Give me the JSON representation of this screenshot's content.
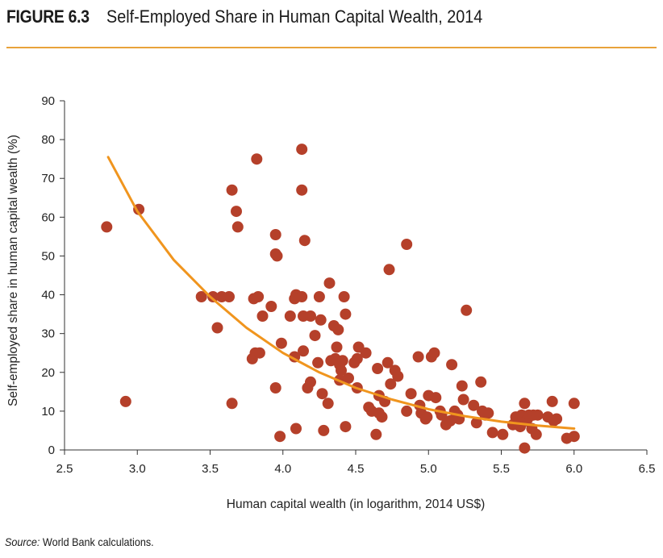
{
  "figure": {
    "label": "FIGURE 6.3",
    "title": "Self-Employed Share in Human Capital Wealth, 2014"
  },
  "source": {
    "label": "Source:",
    "text": " World Bank calculations."
  },
  "colors": {
    "points": "#b5402a",
    "trend": "#f0951e",
    "rule": "#e8a23b",
    "axis": "#333333"
  },
  "chart_data": {
    "type": "scatter",
    "title": "Self-Employed Share in Human Capital Wealth, 2014",
    "xlabel": "Human capital wealth (in logarithm, 2014 US$)",
    "ylabel": "Self-employed share in human capital wealth (%)",
    "xlim": [
      2.5,
      6.5
    ],
    "ylim": [
      0,
      90
    ],
    "xticks": [
      2.5,
      3.0,
      3.5,
      4.0,
      4.5,
      5.0,
      5.5,
      6.0,
      6.5
    ],
    "xtick_labels": [
      "2.5",
      "3.0",
      "3.5",
      "4.0",
      "4.5",
      "5.0",
      "5.5",
      "6.0",
      "6.5"
    ],
    "yticks": [
      0,
      10,
      20,
      30,
      40,
      50,
      60,
      70,
      80,
      90
    ],
    "ytick_labels": [
      "0",
      "10",
      "20",
      "30",
      "40",
      "50",
      "60",
      "70",
      "80",
      "90"
    ],
    "grid": false,
    "points": [
      [
        2.79,
        57.5
      ],
      [
        2.92,
        12.5
      ],
      [
        3.01,
        62
      ],
      [
        3.44,
        39.5
      ],
      [
        3.52,
        39.5
      ],
      [
        3.55,
        31.5
      ],
      [
        3.58,
        39.5
      ],
      [
        3.63,
        39.5
      ],
      [
        3.65,
        12
      ],
      [
        3.65,
        67
      ],
      [
        3.68,
        61.5
      ],
      [
        3.69,
        57.5
      ],
      [
        3.79,
        23.5
      ],
      [
        3.8,
        39
      ],
      [
        3.81,
        25
      ],
      [
        3.82,
        75
      ],
      [
        3.83,
        39.5
      ],
      [
        3.84,
        25
      ],
      [
        3.86,
        34.5
      ],
      [
        3.92,
        37
      ],
      [
        3.95,
        16
      ],
      [
        3.95,
        55.5
      ],
      [
        3.95,
        50.5
      ],
      [
        3.96,
        50
      ],
      [
        3.98,
        3.5
      ],
      [
        3.99,
        27.5
      ],
      [
        4.05,
        34.5
      ],
      [
        4.08,
        39
      ],
      [
        4.09,
        40
      ],
      [
        4.08,
        24
      ],
      [
        4.09,
        5.5
      ],
      [
        4.13,
        77.5
      ],
      [
        4.13,
        67
      ],
      [
        4.13,
        39.5
      ],
      [
        4.14,
        34.5
      ],
      [
        4.14,
        25.5
      ],
      [
        4.15,
        54
      ],
      [
        4.17,
        16
      ],
      [
        4.19,
        17.5
      ],
      [
        4.19,
        34.5
      ],
      [
        4.22,
        29.5
      ],
      [
        4.24,
        22.5
      ],
      [
        4.25,
        39.5
      ],
      [
        4.26,
        33.5
      ],
      [
        4.27,
        14.5
      ],
      [
        4.28,
        5
      ],
      [
        4.31,
        12
      ],
      [
        4.32,
        43
      ],
      [
        4.33,
        23
      ],
      [
        4.35,
        32
      ],
      [
        4.36,
        23.5
      ],
      [
        4.37,
        26.5
      ],
      [
        4.38,
        31
      ],
      [
        4.39,
        22
      ],
      [
        4.39,
        18
      ],
      [
        4.4,
        20.5
      ],
      [
        4.41,
        23
      ],
      [
        4.42,
        39.5
      ],
      [
        4.43,
        35
      ],
      [
        4.43,
        6
      ],
      [
        4.45,
        18.5
      ],
      [
        4.49,
        22.5
      ],
      [
        4.51,
        16
      ],
      [
        4.52,
        26.5
      ],
      [
        4.51,
        23.5
      ],
      [
        4.57,
        25
      ],
      [
        4.59,
        11
      ],
      [
        4.61,
        10
      ],
      [
        4.64,
        4
      ],
      [
        4.65,
        21
      ],
      [
        4.66,
        14
      ],
      [
        4.66,
        9.5
      ],
      [
        4.68,
        8.5
      ],
      [
        4.7,
        12.5
      ],
      [
        4.72,
        22.5
      ],
      [
        4.73,
        46.5
      ],
      [
        4.74,
        17
      ],
      [
        4.77,
        20.5
      ],
      [
        4.79,
        19
      ],
      [
        4.85,
        53
      ],
      [
        4.85,
        10
      ],
      [
        4.88,
        14.5
      ],
      [
        4.93,
        24
      ],
      [
        4.94,
        11.5
      ],
      [
        4.95,
        9.5
      ],
      [
        4.98,
        8
      ],
      [
        4.99,
        8.5
      ],
      [
        5.0,
        14
      ],
      [
        5.02,
        24
      ],
      [
        5.04,
        25
      ],
      [
        5.05,
        13.5
      ],
      [
        5.08,
        10
      ],
      [
        5.09,
        9
      ],
      [
        5.12,
        6.5
      ],
      [
        5.15,
        7.5
      ],
      [
        5.16,
        22
      ],
      [
        5.18,
        10
      ],
      [
        5.2,
        9
      ],
      [
        5.21,
        8
      ],
      [
        5.23,
        16.5
      ],
      [
        5.24,
        13
      ],
      [
        5.26,
        36
      ],
      [
        5.31,
        11.5
      ],
      [
        5.33,
        7
      ],
      [
        5.36,
        17.5
      ],
      [
        5.37,
        10
      ],
      [
        5.39,
        9
      ],
      [
        5.41,
        9.5
      ],
      [
        5.44,
        4.5
      ],
      [
        5.51,
        4
      ],
      [
        5.58,
        6.5
      ],
      [
        5.6,
        8.5
      ],
      [
        5.62,
        7
      ],
      [
        5.63,
        6
      ],
      [
        5.64,
        9
      ],
      [
        5.66,
        12
      ],
      [
        5.66,
        0.5
      ],
      [
        5.67,
        7.5
      ],
      [
        5.68,
        8
      ],
      [
        5.69,
        9
      ],
      [
        5.71,
        5.5
      ],
      [
        5.72,
        9
      ],
      [
        5.74,
        4
      ],
      [
        5.75,
        9
      ],
      [
        5.82,
        8.5
      ],
      [
        5.85,
        12.5
      ],
      [
        5.86,
        7.5
      ],
      [
        5.88,
        8
      ],
      [
        5.95,
        3
      ],
      [
        6.0,
        3.5
      ],
      [
        6.0,
        12
      ]
    ],
    "trend": {
      "type": "fitted-curve",
      "x": [
        2.8,
        3.0,
        3.25,
        3.5,
        3.75,
        4.0,
        4.25,
        4.5,
        4.75,
        5.0,
        5.25,
        5.5,
        5.75,
        6.0
      ],
      "y": [
        75.5,
        61.5,
        49,
        39.5,
        31.5,
        25,
        20,
        16,
        13,
        10.5,
        8.7,
        7.3,
        6.3,
        5.5
      ]
    }
  }
}
